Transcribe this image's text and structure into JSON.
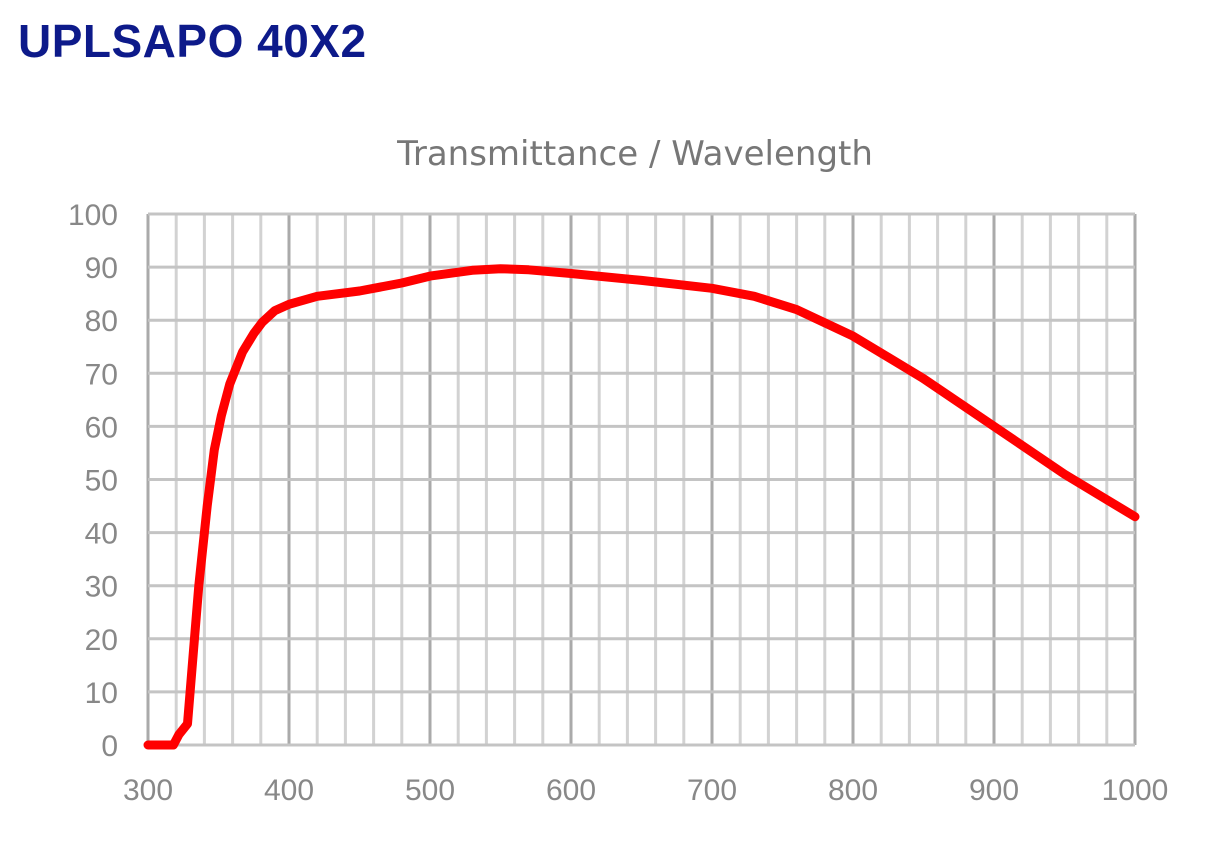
{
  "page_title": "UPLSAPO 40X2",
  "chart_data": {
    "type": "line",
    "title": "Transmittance / Wavelength",
    "xlabel": "",
    "ylabel": "",
    "xlim": [
      300,
      1000
    ],
    "ylim": [
      0,
      100
    ],
    "grid": true,
    "x_ticks": [
      "300",
      "400",
      "500",
      "600",
      "700",
      "800",
      "900",
      "1000"
    ],
    "y_ticks": [
      "0",
      "10",
      "20",
      "30",
      "40",
      "50",
      "60",
      "70",
      "80",
      "90",
      "100"
    ],
    "series": [
      {
        "name": "Transmittance",
        "color": "#ff0000",
        "x": [
          300,
          318,
          322,
          328,
          336,
          342,
          347,
          352,
          358,
          367,
          375,
          381,
          390,
          400,
          420,
          450,
          480,
          500,
          530,
          550,
          570,
          600,
          650,
          700,
          730,
          760,
          800,
          850,
          900,
          950,
          1000
        ],
        "y": [
          0,
          0,
          2,
          4,
          30,
          45,
          55.6,
          62,
          68,
          74,
          77.5,
          79.6,
          81.8,
          83,
          84.5,
          85.5,
          87,
          88.3,
          89.4,
          89.7,
          89.5,
          88.8,
          87.5,
          86,
          84.5,
          82,
          77,
          69,
          60,
          51,
          43
        ]
      }
    ]
  }
}
